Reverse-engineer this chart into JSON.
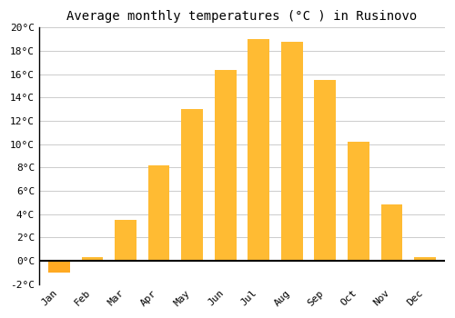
{
  "title": "Average monthly temperatures (°C ) in Rusinovo",
  "months": [
    "Jan",
    "Feb",
    "Mar",
    "Apr",
    "May",
    "Jun",
    "Jul",
    "Aug",
    "Sep",
    "Oct",
    "Nov",
    "Dec"
  ],
  "values": [
    -1.0,
    0.3,
    3.5,
    8.2,
    13.0,
    16.4,
    19.0,
    18.8,
    15.5,
    10.2,
    4.8,
    0.3
  ],
  "bar_color_pos": "#FFBB33",
  "bar_color_neg": "#FFAA22",
  "ylim": [
    -2,
    20
  ],
  "yticks": [
    -2,
    0,
    2,
    4,
    6,
    8,
    10,
    12,
    14,
    16,
    18,
    20
  ],
  "grid_color": "#cccccc",
  "background_color": "#ffffff",
  "title_fontsize": 10,
  "tick_fontsize": 8,
  "bar_width": 0.65
}
